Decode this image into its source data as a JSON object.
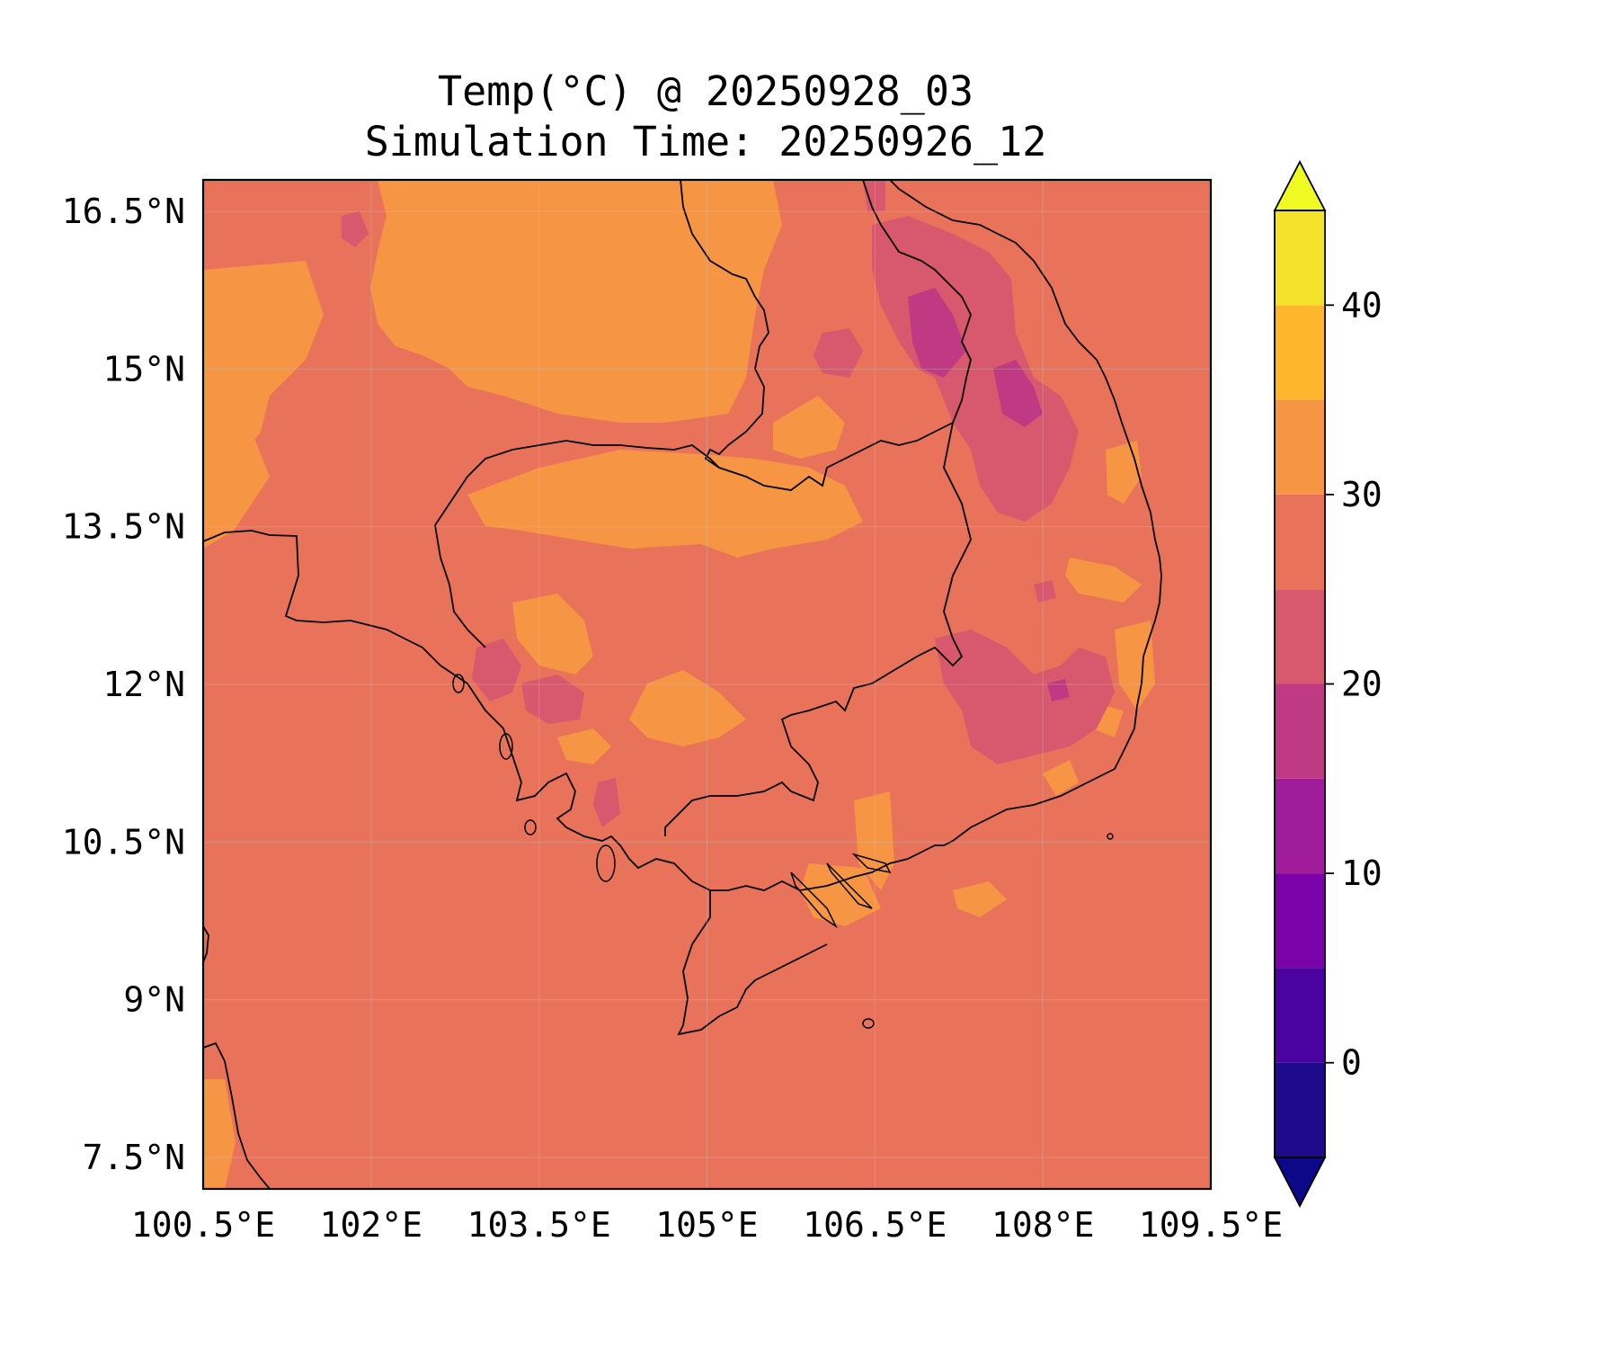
{
  "title": {
    "line1": "Temp(°C) @ 20250928_03",
    "line2": "Simulation Time: 20250926_12"
  },
  "map": {
    "lon_range": [
      100.5,
      109.5
    ],
    "lat_range": [
      7.2,
      16.8
    ],
    "lon_ticks": [
      {
        "value": 100.5,
        "label": "100.5°E"
      },
      {
        "value": 102,
        "label": "102°E"
      },
      {
        "value": 103.5,
        "label": "103.5°E"
      },
      {
        "value": 105,
        "label": "105°E"
      },
      {
        "value": 106.5,
        "label": "106.5°E"
      },
      {
        "value": 108,
        "label": "108°E"
      },
      {
        "value": 109.5,
        "label": "109.5°E"
      }
    ],
    "lat_ticks": [
      {
        "value": 16.5,
        "label": "16.5°N"
      },
      {
        "value": 15,
        "label": "15°N"
      },
      {
        "value": 13.5,
        "label": "13.5°N"
      },
      {
        "value": 12,
        "label": "12°N"
      },
      {
        "value": 10.5,
        "label": "10.5°N"
      },
      {
        "value": 9,
        "label": "9°N"
      },
      {
        "value": 7.5,
        "label": "7.5°N"
      }
    ],
    "background_color": "#e8735a",
    "gridlines": true
  },
  "colorbar": {
    "levels": [
      -5,
      0,
      5,
      10,
      15,
      20,
      25,
      30,
      35,
      40,
      45
    ],
    "colors": [
      "#200a8c",
      "#4a02a0",
      "#7a02a8",
      "#a11c9b",
      "#c03a83",
      "#d8586d",
      "#e8735a",
      "#f69544",
      "#feb72d",
      "#f3e12a"
    ],
    "under_color": "#0d0887",
    "over_color": "#f0f921",
    "tick_values": [
      0,
      10,
      20,
      30,
      40
    ],
    "tick_labels": [
      "0",
      "10",
      "20",
      "30",
      "40"
    ],
    "extend": "both"
  }
}
